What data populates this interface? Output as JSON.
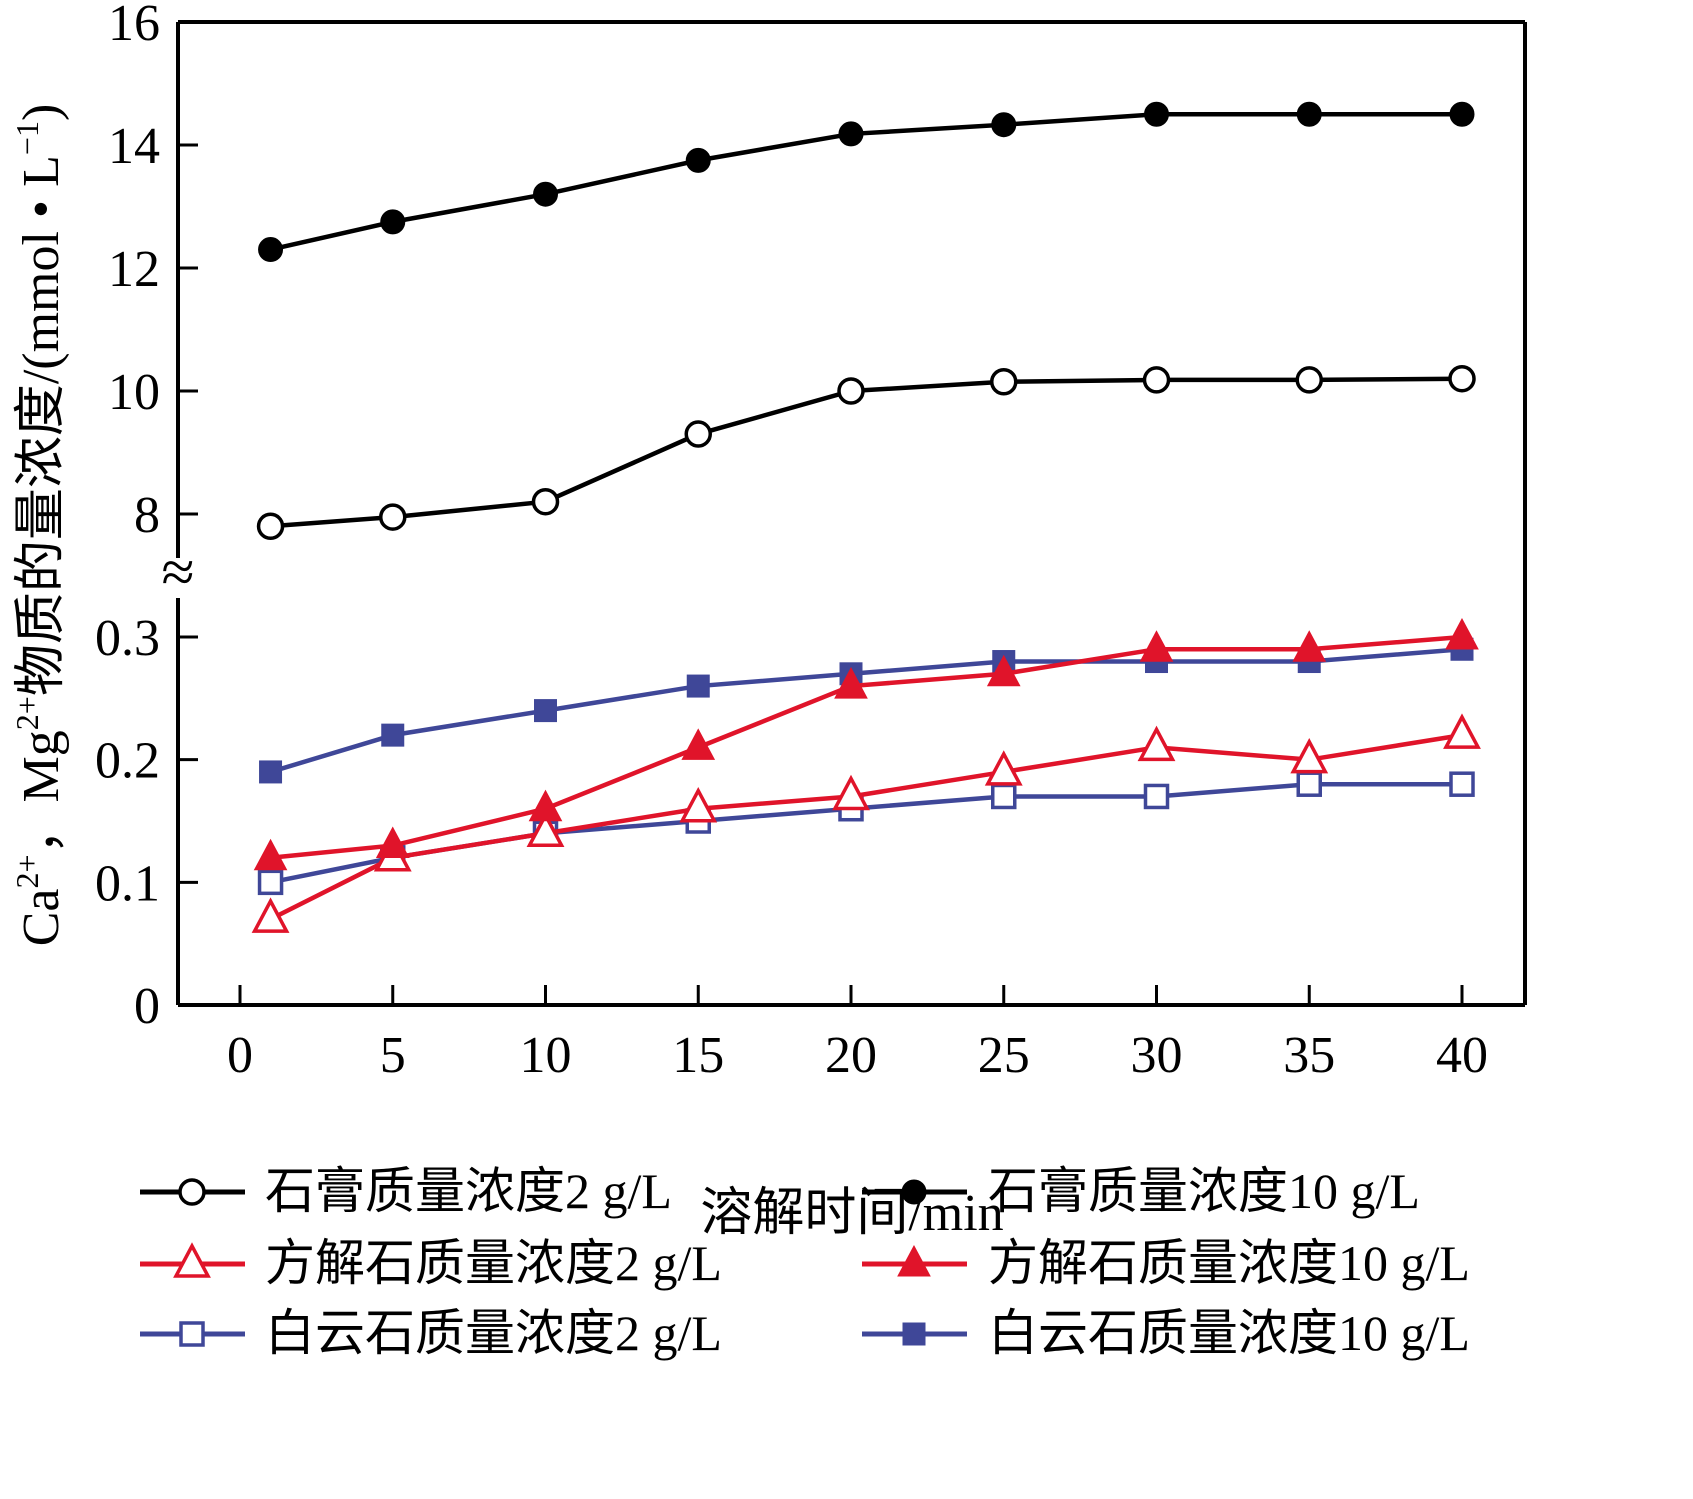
{
  "chart_data": {
    "type": "line",
    "title": "",
    "xlabel": "溶解时间/min",
    "ylabel": "Ca2+, Mg2+物质的量浓度/(mmol·L-1)",
    "ylabel_parts": {
      "ca": "Ca",
      "ca_sup": "2+",
      "sep": "，Mg",
      "mg_sup": "2+",
      "rest": "物质的量浓度/(mmol • L",
      "unit_sup": "−1",
      "close": ")"
    },
    "x_ticks": [
      "0",
      "5",
      "10",
      "15",
      "20",
      "25",
      "30",
      "35",
      "40"
    ],
    "x_tick_values": [
      0,
      5,
      10,
      15,
      20,
      25,
      30,
      35,
      40
    ],
    "xlim": [
      0,
      40
    ],
    "y_axis_broken": true,
    "y_upper_segment": {
      "range": [
        7,
        16
      ],
      "ticks": [
        "8",
        "10",
        "12",
        "14",
        "16"
      ],
      "tick_values": [
        8,
        10,
        12,
        14,
        16
      ]
    },
    "y_lower_segment": {
      "range": [
        0,
        0.3
      ],
      "ticks": [
        "0",
        "0.1",
        "0.2",
        "0.3"
      ],
      "tick_values": [
        0,
        0.1,
        0.2,
        0.3
      ]
    },
    "break_symbol": "≈",
    "grid": false,
    "legend_position": "bottom",
    "x": [
      1,
      5,
      10,
      15,
      20,
      25,
      30,
      35,
      40
    ],
    "series": [
      {
        "name": "石膏质量浓度2 g/L",
        "color": "#000000",
        "marker": "circle-open",
        "values": [
          7.8,
          7.95,
          8.2,
          9.3,
          10.0,
          10.15,
          10.18,
          10.18,
          10.2
        ]
      },
      {
        "name": "石膏质量浓度10 g/L",
        "color": "#000000",
        "marker": "circle-filled",
        "values": [
          12.3,
          12.75,
          13.2,
          13.75,
          14.18,
          14.33,
          14.5,
          14.5,
          14.5
        ]
      },
      {
        "name": "方解石质量浓度2 g/L",
        "color": "#E0142A",
        "marker": "triangle-open",
        "values": [
          0.07,
          0.12,
          0.14,
          0.16,
          0.17,
          0.19,
          0.21,
          0.2,
          0.22
        ]
      },
      {
        "name": "方解石质量浓度10 g/L",
        "color": "#E0142A",
        "marker": "triangle-filled",
        "values": [
          0.12,
          0.13,
          0.16,
          0.21,
          0.26,
          0.27,
          0.29,
          0.29,
          0.3
        ]
      },
      {
        "name": "白云石质量浓度2 g/L",
        "color": "#3F4798",
        "marker": "square-open",
        "values": [
          0.1,
          0.12,
          0.14,
          0.15,
          0.16,
          0.17,
          0.17,
          0.18,
          0.18
        ]
      },
      {
        "name": "白云石质量浓度10 g/L",
        "color": "#3F4798",
        "marker": "square-filled",
        "values": [
          0.19,
          0.22,
          0.24,
          0.26,
          0.27,
          0.28,
          0.28,
          0.28,
          0.29
        ]
      }
    ]
  }
}
